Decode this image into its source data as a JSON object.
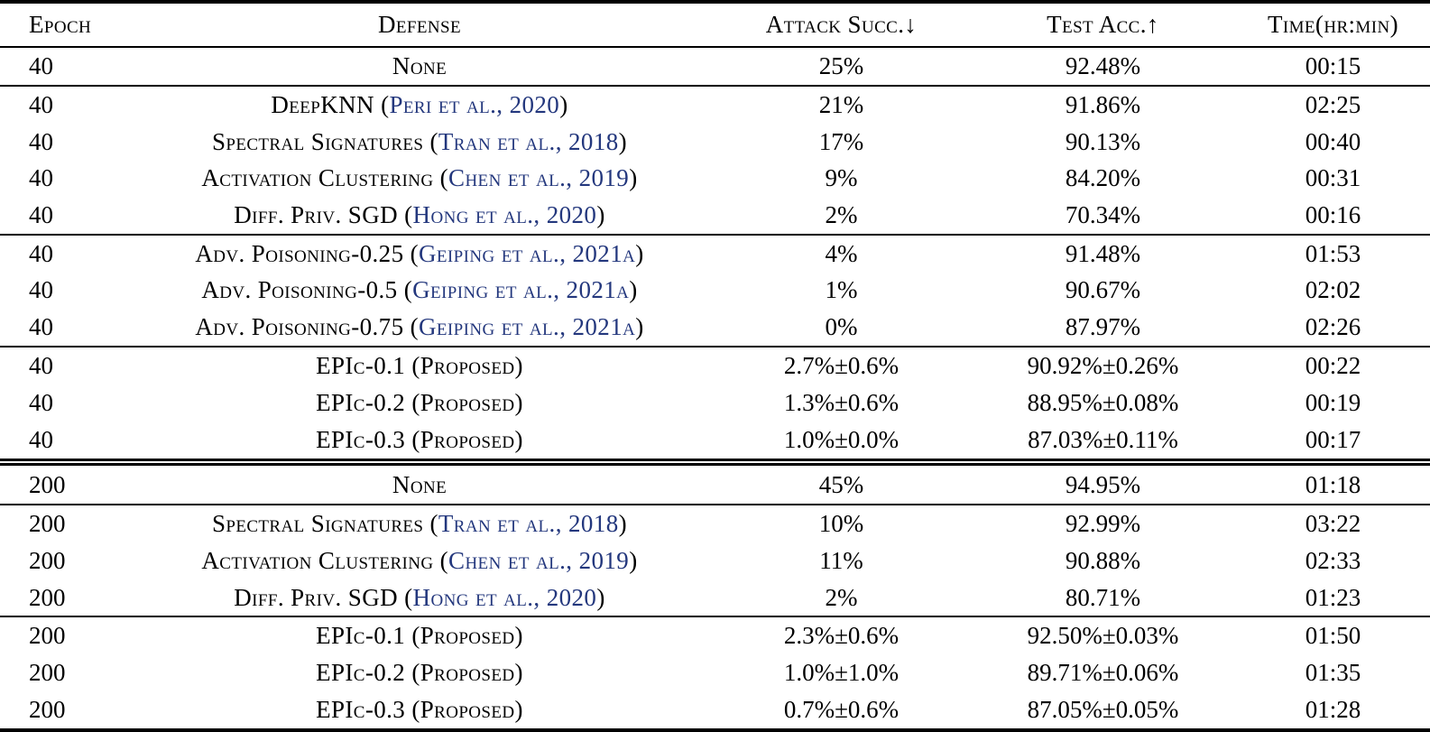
{
  "colors": {
    "citation": "#23377d",
    "text": "#000000",
    "background": "#ffffff",
    "rule": "#000000"
  },
  "header": {
    "columns": [
      "Epoch",
      "Defense",
      "Attack Succ.↓",
      "Test Acc.↑",
      "Time(hr:min)"
    ]
  },
  "groups": [
    {
      "separator": "none",
      "rows": [
        {
          "epoch": "40",
          "defense": {
            "pre": "None",
            "cite": "",
            "post": ""
          },
          "attack": "25%",
          "test_acc": "92.48%",
          "time": "00:15"
        }
      ]
    },
    {
      "separator": "thin",
      "rows": [
        {
          "epoch": "40",
          "defense": {
            "pre": "DeepKNN (",
            "cite": "Peri et al., 2020",
            "post": ")"
          },
          "attack": "21%",
          "test_acc": "91.86%",
          "time": "02:25"
        },
        {
          "epoch": "40",
          "defense": {
            "pre": "Spectral Signatures (",
            "cite": "Tran et al., 2018",
            "post": ")"
          },
          "attack": "17%",
          "test_acc": "90.13%",
          "time": "00:40"
        },
        {
          "epoch": "40",
          "defense": {
            "pre": "Activation Clustering (",
            "cite": "Chen et al., 2019",
            "post": ")"
          },
          "attack": "9%",
          "test_acc": "84.20%",
          "time": "00:31"
        },
        {
          "epoch": "40",
          "defense": {
            "pre": "Diff. Priv. SGD (",
            "cite": "Hong et al., 2020",
            "post": ")"
          },
          "attack": "2%",
          "test_acc": "70.34%",
          "time": "00:16"
        }
      ]
    },
    {
      "separator": "thin",
      "rows": [
        {
          "epoch": "40",
          "defense": {
            "pre": "Adv. Poisoning-0.25 (",
            "cite": "Geiping et al., 2021a",
            "post": ")"
          },
          "attack": "4%",
          "test_acc": "91.48%",
          "time": "01:53"
        },
        {
          "epoch": "40",
          "defense": {
            "pre": "Adv. Poisoning-0.5 (",
            "cite": "Geiping et al., 2021a",
            "post": ")"
          },
          "attack": "1%",
          "test_acc": "90.67%",
          "time": "02:02"
        },
        {
          "epoch": "40",
          "defense": {
            "pre": "Adv. Poisoning-0.75 (",
            "cite": "Geiping et al., 2021a",
            "post": ")"
          },
          "attack": "0%",
          "test_acc": "87.97%",
          "time": "02:26"
        }
      ]
    },
    {
      "separator": "thin",
      "rows": [
        {
          "epoch": "40",
          "defense": {
            "pre": "EPIc-0.1 (Proposed)",
            "cite": "",
            "post": ""
          },
          "attack": "2.7%±0.6%",
          "test_acc": "90.92%±0.26%",
          "time": "00:22"
        },
        {
          "epoch": "40",
          "defense": {
            "pre": "EPIc-0.2 (Proposed)",
            "cite": "",
            "post": ""
          },
          "attack": "1.3%±0.6%",
          "test_acc": "88.95%±0.08%",
          "time": "00:19"
        },
        {
          "epoch": "40",
          "defense": {
            "pre": "EPIc-0.3 (Proposed)",
            "cite": "",
            "post": ""
          },
          "attack": "1.0%±0.0%",
          "test_acc": "87.03%±0.11%",
          "time": "00:17"
        }
      ]
    },
    {
      "separator": "double",
      "rows": [
        {
          "epoch": "200",
          "defense": {
            "pre": "None",
            "cite": "",
            "post": ""
          },
          "attack": "45%",
          "test_acc": "94.95%",
          "time": "01:18"
        }
      ]
    },
    {
      "separator": "thin",
      "rows": [
        {
          "epoch": "200",
          "defense": {
            "pre": "Spectral Signatures (",
            "cite": "Tran et al., 2018",
            "post": ")"
          },
          "attack": "10%",
          "test_acc": "92.99%",
          "time": "03:22"
        },
        {
          "epoch": "200",
          "defense": {
            "pre": "Activation Clustering (",
            "cite": "Chen et al., 2019",
            "post": ")"
          },
          "attack": "11%",
          "test_acc": "90.88%",
          "time": "02:33"
        },
        {
          "epoch": "200",
          "defense": {
            "pre": "Diff. Priv. SGD (",
            "cite": "Hong et al., 2020",
            "post": ")"
          },
          "attack": "2%",
          "test_acc": "80.71%",
          "time": "01:23"
        }
      ]
    },
    {
      "separator": "thin",
      "rows": [
        {
          "epoch": "200",
          "defense": {
            "pre": "EPIc-0.1 (Proposed)",
            "cite": "",
            "post": ""
          },
          "attack": "2.3%±0.6%",
          "test_acc": "92.50%±0.03%",
          "time": "01:50"
        },
        {
          "epoch": "200",
          "defense": {
            "pre": "EPIc-0.2 (Proposed)",
            "cite": "",
            "post": ""
          },
          "attack": "1.0%±1.0%",
          "test_acc": "89.71%±0.06%",
          "time": "01:35"
        },
        {
          "epoch": "200",
          "defense": {
            "pre": "EPIc-0.3 (Proposed)",
            "cite": "",
            "post": ""
          },
          "attack": "0.7%±0.6%",
          "test_acc": "87.05%±0.05%",
          "time": "01:28"
        }
      ]
    }
  ]
}
